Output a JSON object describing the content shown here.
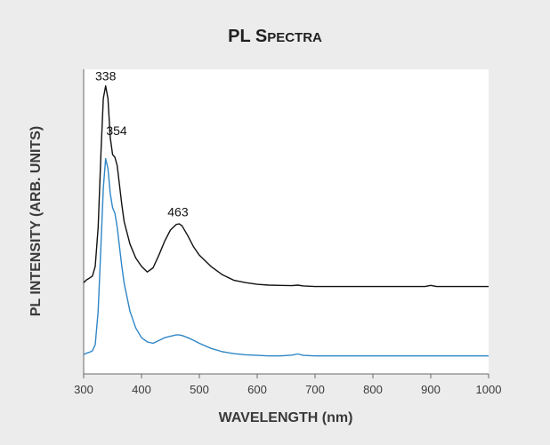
{
  "chart_data": {
    "type": "line",
    "title_main": "PL S",
    "title_small": "PECTRA",
    "xlabel": "WAVELENGTH (nm)",
    "ylabel": "PL INTENSITY (ARB. UNITS)",
    "xlim": [
      300,
      1000
    ],
    "ylim": [
      0,
      1
    ],
    "xticks": [
      300,
      400,
      500,
      600,
      700,
      800,
      900,
      1000
    ],
    "y_ticks_shown": false,
    "grid": false,
    "annotations": [
      {
        "text": "338",
        "x": 338,
        "y": 0.985
      },
      {
        "text": "354",
        "x": 357,
        "y": 0.79
      },
      {
        "text": "463",
        "x": 463,
        "y": 0.5
      }
    ],
    "series": [
      {
        "color": "#111111",
        "x": [
          300,
          305,
          310,
          315,
          320,
          325,
          330,
          334,
          338,
          342,
          346,
          350,
          354,
          358,
          362,
          366,
          370,
          380,
          390,
          400,
          410,
          420,
          430,
          440,
          450,
          460,
          465,
          470,
          480,
          490,
          500,
          520,
          540,
          560,
          580,
          600,
          620,
          640,
          660,
          670,
          680,
          700,
          750,
          800,
          850,
          890,
          900,
          910,
          950,
          1000
        ],
        "y": [
          0.282,
          0.292,
          0.298,
          0.305,
          0.34,
          0.48,
          0.75,
          0.94,
          0.985,
          0.94,
          0.8,
          0.74,
          0.73,
          0.7,
          0.63,
          0.56,
          0.5,
          0.42,
          0.37,
          0.34,
          0.32,
          0.335,
          0.38,
          0.43,
          0.47,
          0.49,
          0.492,
          0.485,
          0.45,
          0.41,
          0.38,
          0.34,
          0.31,
          0.29,
          0.282,
          0.276,
          0.273,
          0.272,
          0.271,
          0.273,
          0.27,
          0.268,
          0.268,
          0.268,
          0.268,
          0.268,
          0.272,
          0.268,
          0.268,
          0.268
        ]
      },
      {
        "color": "#2f86c6",
        "x": [
          300,
          305,
          310,
          315,
          320,
          325,
          330,
          334,
          338,
          342,
          346,
          350,
          354,
          358,
          362,
          366,
          370,
          380,
          390,
          400,
          410,
          420,
          430,
          440,
          450,
          460,
          465,
          470,
          480,
          490,
          500,
          520,
          540,
          560,
          580,
          600,
          620,
          640,
          660,
          670,
          680,
          700,
          750,
          800,
          850,
          900,
          950,
          1000
        ],
        "y": [
          0.025,
          0.03,
          0.033,
          0.038,
          0.06,
          0.18,
          0.42,
          0.62,
          0.725,
          0.69,
          0.6,
          0.55,
          0.53,
          0.48,
          0.41,
          0.34,
          0.28,
          0.18,
          0.12,
          0.085,
          0.07,
          0.065,
          0.075,
          0.085,
          0.09,
          0.095,
          0.095,
          0.093,
          0.085,
          0.076,
          0.065,
          0.047,
          0.035,
          0.028,
          0.024,
          0.022,
          0.02,
          0.02,
          0.023,
          0.027,
          0.022,
          0.02,
          0.02,
          0.02,
          0.02,
          0.02,
          0.02,
          0.02
        ]
      }
    ]
  }
}
